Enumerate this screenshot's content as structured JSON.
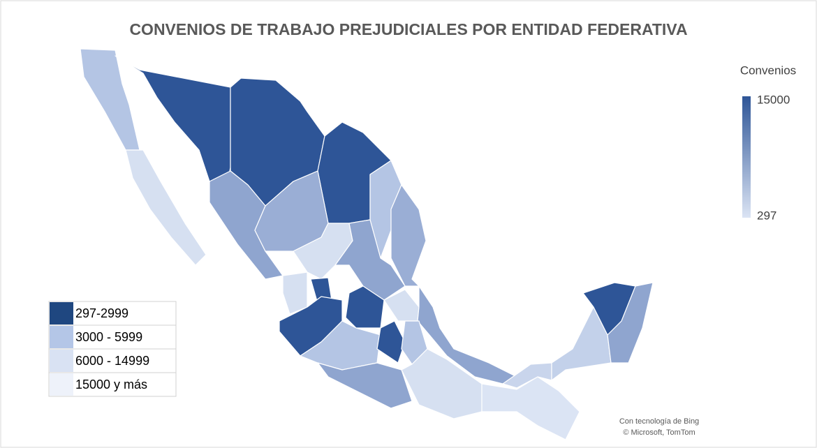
{
  "map": {
    "title": "CONVENIOS DE TRABAJO PREJUDICIALES POR ENTIDAD FEDERATIVA",
    "scale": {
      "title": "Convenios",
      "max": 15000,
      "min": 297,
      "colors": [
        "#2e5597",
        "#dbe4f4"
      ]
    },
    "legend": [
      {
        "label": "297-2999",
        "color": "#1f4780"
      },
      {
        "label": "3000 - 5999",
        "color": "#b4c6e7"
      },
      {
        "label": "6000 - 14999",
        "color": "#d9e2f3"
      },
      {
        "label": "15000 y más",
        "color": "#eef2fa"
      }
    ],
    "attribution": [
      "Con tecnología de Bing",
      "© Microsoft, TomTom"
    ]
  }
}
